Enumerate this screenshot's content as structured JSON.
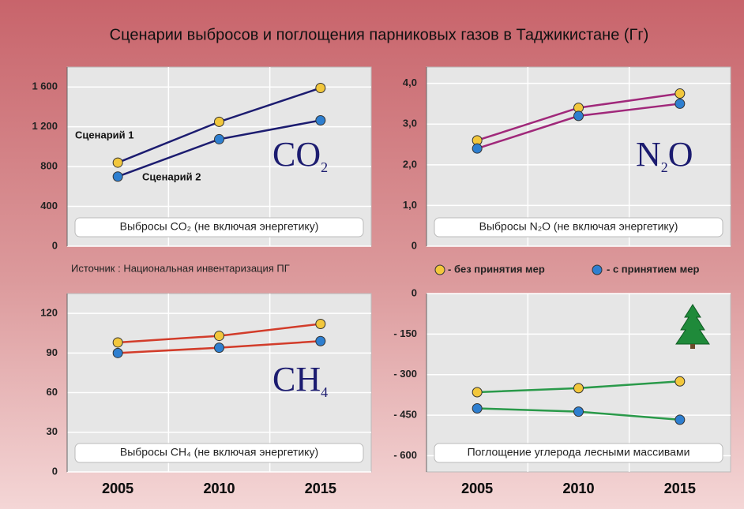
{
  "title": "Сценарии выбросов и поглощения парниковых газов в Таджикистане (Гг)",
  "source": "Источник : Национальная инвентаризация ПГ",
  "legend": [
    {
      "name": "- без принятия мер",
      "color": "#f2c73c"
    },
    {
      "name": "- с принятием мер",
      "color": "#2e7fd0"
    }
  ],
  "chart_data": [
    {
      "type": "line",
      "caption": "Выбросы CO₂ (не включая энергетику)",
      "formula": [
        {
          "text": "CO"
        },
        {
          "text": "2",
          "sub": true
        }
      ],
      "categories": [
        "2005",
        "2010",
        "2015"
      ],
      "series": [
        {
          "name": "Сценарий 1",
          "color": "#1c1c70",
          "marker_color": "#f2c73c",
          "values": [
            840,
            1250,
            1590
          ]
        },
        {
          "name": "Сценарий 2",
          "color": "#1c1c70",
          "marker_color": "#2e7fd0",
          "values": [
            700,
            1075,
            1265
          ]
        }
      ],
      "ylim": [
        0,
        1800
      ],
      "yticks": [
        0,
        400,
        800,
        {
          "value": 1200,
          "label": "1 200"
        },
        {
          "value": 1600,
          "label": "1 600"
        }
      ],
      "grid": true
    },
    {
      "type": "line",
      "caption": "Выбросы N₂O (не включая энергетику)",
      "formula": [
        {
          "text": "N"
        },
        {
          "text": "2",
          "sub": true
        },
        {
          "text": "O"
        }
      ],
      "categories": [
        "2005",
        "2010",
        "2015"
      ],
      "series": [
        {
          "color": "#a0287a",
          "marker_color": "#f2c73c",
          "values": [
            2.6,
            3.4,
            3.75
          ]
        },
        {
          "color": "#a0287a",
          "marker_color": "#2e7fd0",
          "values": [
            2.4,
            3.2,
            3.5
          ]
        }
      ],
      "ylim": [
        0,
        4.4
      ],
      "yticks": [
        0,
        {
          "value": 1,
          "label": "1,0"
        },
        {
          "value": 2,
          "label": "2,0"
        },
        {
          "value": 3,
          "label": "3,0"
        },
        {
          "value": 4,
          "label": "4,0"
        }
      ],
      "grid": true
    },
    {
      "type": "line",
      "caption": "Выбросы CH₄ (не включая энергетику)",
      "formula": [
        {
          "text": "CH"
        },
        {
          "text": "4",
          "sub": true
        }
      ],
      "categories": [
        "2005",
        "2010",
        "2015"
      ],
      "series": [
        {
          "color": "#d23c2a",
          "marker_color": "#f2c73c",
          "values": [
            98,
            103,
            112
          ]
        },
        {
          "color": "#d23c2a",
          "marker_color": "#2e7fd0",
          "values": [
            90,
            94,
            99
          ]
        }
      ],
      "ylim": [
        0,
        135
      ],
      "yticks": [
        0,
        30,
        60,
        90,
        120
      ],
      "grid": true
    },
    {
      "type": "line",
      "caption": "Поглощение углерода лесными массивами",
      "categories": [
        "2005",
        "2010",
        "2015"
      ],
      "series": [
        {
          "color": "#2a9a4a",
          "marker_color": "#f2c73c",
          "values": [
            -365,
            -350,
            -325
          ]
        },
        {
          "color": "#2a9a4a",
          "marker_color": "#2e7fd0",
          "values": [
            -425,
            -437,
            -467
          ]
        }
      ],
      "ylim": [
        -660,
        0
      ],
      "yticks": [
        {
          "value": -600,
          "label": "- 600"
        },
        {
          "value": -450,
          "label": "- 450"
        },
        {
          "value": -300,
          "label": "- 300"
        },
        {
          "value": -150,
          "label": "- 150"
        },
        0
      ],
      "grid": true
    }
  ]
}
